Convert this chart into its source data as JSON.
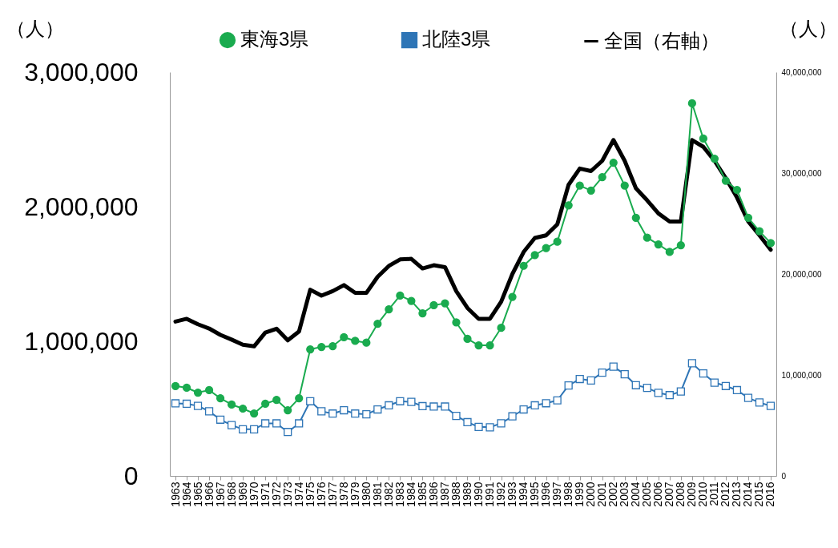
{
  "chart_data": {
    "type": "line",
    "ylabel": "（人）",
    "y2label": "（人）",
    "categories": [
      "1963",
      "1964",
      "1965",
      "1966",
      "1967",
      "1968",
      "1969",
      "1970",
      "1971",
      "1972",
      "1973",
      "1974",
      "1975",
      "1976",
      "1977",
      "1978",
      "1979",
      "1980",
      "1981",
      "1982",
      "1983",
      "1984",
      "1985",
      "1986",
      "1987",
      "1988",
      "1989",
      "1990",
      "1991",
      "1992",
      "1993",
      "1994",
      "1995",
      "1996",
      "1997",
      "1998",
      "1999",
      "2000",
      "2001",
      "2002",
      "2003",
      "2004",
      "2005",
      "2006",
      "2007",
      "2008",
      "2009",
      "2010",
      "2011",
      "2012",
      "2013",
      "2014",
      "2015",
      "2016"
    ],
    "series": [
      {
        "name": "東海3県",
        "color": "#1aab4f",
        "marker": "circle",
        "values": [
          668000,
          655000,
          619000,
          637000,
          577000,
          530000,
          500000,
          464000,
          536000,
          565000,
          488000,
          577000,
          940000,
          958000,
          964000,
          1030000,
          1003000,
          990000,
          1130000,
          1238000,
          1340000,
          1300000,
          1208000,
          1268000,
          1282000,
          1140000,
          1018000,
          970000,
          970000,
          1100000,
          1330000,
          1561000,
          1640000,
          1692000,
          1740000,
          2010000,
          2157000,
          2120000,
          2220000,
          2327000,
          2157000,
          1918000,
          1770000,
          1720000,
          1664000,
          1714000,
          2768000,
          2506000,
          2357000,
          2193000,
          2125000,
          1918000,
          1818000,
          1730000
        ]
      },
      {
        "name": "北陸3県",
        "color": "#2e75b6",
        "marker": "square",
        "values": [
          539000,
          536000,
          520000,
          480000,
          418000,
          377000,
          346000,
          346000,
          390000,
          390000,
          326000,
          390000,
          555000,
          480000,
          463000,
          488000,
          463000,
          458000,
          494000,
          524000,
          555000,
          550000,
          518000,
          515000,
          515000,
          446000,
          399000,
          364000,
          361000,
          391000,
          442000,
          494000,
          524000,
          540000,
          561000,
          672000,
          720000,
          709000,
          767000,
          812000,
          755000,
          674000,
          654000,
          617000,
          600000,
          627000,
          837000,
          761000,
          693000,
          668000,
          637000,
          580000,
          545000,
          520000
        ]
      },
      {
        "name": "全国（右軸）",
        "color": "#000000",
        "marker": "none",
        "axis": "y2",
        "values": [
          15290000,
          15560000,
          15020000,
          14600000,
          13970000,
          13500000,
          13000000,
          12830000,
          14200000,
          14580000,
          13430000,
          14300000,
          18440000,
          17860000,
          18300000,
          18900000,
          18130000,
          18130000,
          19720000,
          20800000,
          21440000,
          21500000,
          20550000,
          20870000,
          20680000,
          18300000,
          16630000,
          15560000,
          15560000,
          17250000,
          20000000,
          22180000,
          23570000,
          23830000,
          24920000,
          28830000,
          30450000,
          30200000,
          31210000,
          33270000,
          31210000,
          28490000,
          27300000,
          26000000,
          25200000,
          25200000,
          33270000,
          32600000,
          31210000,
          29500000,
          27570000,
          25200000,
          23830000,
          22400000
        ]
      }
    ],
    "ylim": [
      0,
      3000000
    ],
    "yticks": [
      {
        "value": 0,
        "label": "0"
      },
      {
        "value": 1000000,
        "label": "1,000,000"
      },
      {
        "value": 2000000,
        "label": "2,000,000"
      },
      {
        "value": 3000000,
        "label": "3,000,000"
      }
    ],
    "y2lim": [
      0,
      40000000
    ],
    "y2ticks": [
      {
        "value": 0,
        "label": "0"
      },
      {
        "value": 10000000,
        "label": "10,000,000"
      },
      {
        "value": 20000000,
        "label": "20,000,000"
      },
      {
        "value": 30000000,
        "label": "30,000,000"
      },
      {
        "value": 40000000,
        "label": "40,000,000"
      }
    ],
    "legend": "top",
    "grid": false
  }
}
